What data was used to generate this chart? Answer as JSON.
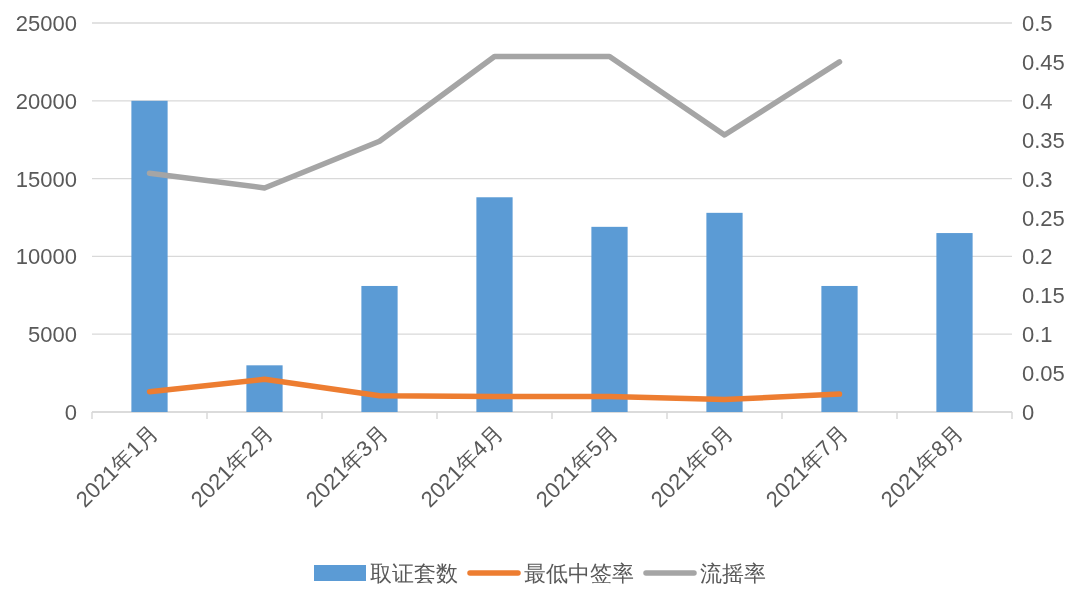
{
  "chart_data": {
    "type": "bar",
    "categories": [
      "2021年1月",
      "2021年2月",
      "2021年3月",
      "2021年4月",
      "2021年5月",
      "2021年6月",
      "2021年7月",
      "2021年8月"
    ],
    "series": [
      {
        "name": "取证套数",
        "color": "#5b9bd5",
        "values": [
          20000,
          3000,
          8100,
          13800,
          11900,
          12800,
          8100,
          11500
        ]
      },
      {
        "name": "最低中签率",
        "type": "line",
        "axis": "y2",
        "color": "#ed7d31",
        "values": [
          0.026,
          0.042,
          0.021,
          0.02,
          0.02,
          0.016,
          0.023,
          null
        ]
      },
      {
        "name": "流摇率",
        "type": "line",
        "axis": "y2",
        "color": "#a5a5a5",
        "values": [
          0.307,
          0.288,
          0.348,
          0.457,
          0.457,
          0.356,
          0.45,
          null
        ]
      }
    ],
    "ylim": [
      0,
      25000
    ],
    "yticks": [
      0,
      5000,
      10000,
      15000,
      20000,
      25000
    ],
    "y2lim": [
      0,
      0.5
    ],
    "y2ticks": [
      0,
      0.05,
      0.1,
      0.15,
      0.2,
      0.25,
      0.3,
      0.35,
      0.4,
      0.45,
      0.5
    ],
    "grid": "y",
    "legend": "bottom",
    "line_style": "solid"
  }
}
